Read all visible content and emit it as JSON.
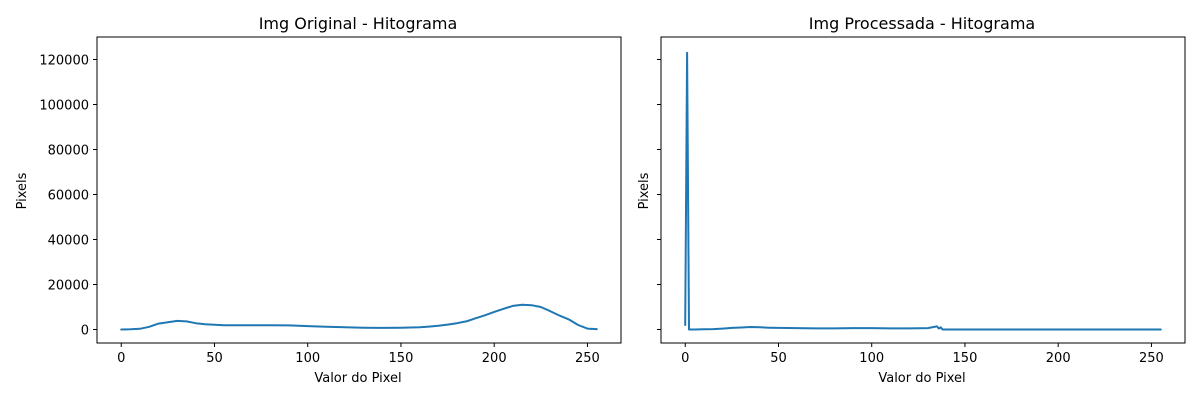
{
  "chart_data": [
    {
      "type": "line",
      "title": "Img Original - Hitograma",
      "xlabel": "Valor do Pixel",
      "ylabel": "Pixels",
      "xlim": [
        -13,
        268
      ],
      "ylim": [
        -6000,
        130000
      ],
      "xticks": [
        0,
        50,
        100,
        150,
        200,
        250
      ],
      "yticks": [
        0,
        20000,
        40000,
        60000,
        80000,
        100000,
        120000
      ],
      "ytick_labels_visible": true,
      "grid": false,
      "color": "#1f77b4",
      "series": [
        {
          "x": [
            0,
            5,
            10,
            15,
            20,
            25,
            30,
            35,
            40,
            45,
            50,
            55,
            60,
            70,
            80,
            90,
            100,
            110,
            120,
            130,
            140,
            150,
            160,
            165,
            170,
            175,
            180,
            185,
            190,
            195,
            200,
            205,
            210,
            215,
            220,
            225,
            230,
            235,
            240,
            245,
            250,
            255
          ],
          "y": [
            0,
            100,
            300,
            1200,
            2600,
            3200,
            3800,
            3600,
            2800,
            2300,
            2100,
            1900,
            1900,
            1900,
            1900,
            1800,
            1500,
            1200,
            1000,
            800,
            700,
            800,
            1000,
            1300,
            1700,
            2200,
            2800,
            3600,
            5000,
            6300,
            7800,
            9200,
            10500,
            11000,
            10800,
            10000,
            8200,
            6200,
            4500,
            2000,
            400,
            200
          ]
        }
      ]
    },
    {
      "type": "line",
      "title": "Img Processada - Hitograma",
      "xlabel": "Valor do Pixel",
      "ylabel": "Pixels",
      "xlim": [
        -13,
        268
      ],
      "ylim": [
        -6000,
        130000
      ],
      "xticks": [
        0,
        50,
        100,
        150,
        200,
        250
      ],
      "yticks": [
        0,
        20000,
        40000,
        60000,
        80000,
        100000,
        120000
      ],
      "ytick_labels_visible": false,
      "grid": false,
      "color": "#1f77b4",
      "series": [
        {
          "x": [
            0,
            1,
            2,
            5,
            10,
            15,
            20,
            25,
            30,
            35,
            40,
            45,
            50,
            60,
            70,
            80,
            90,
            100,
            110,
            120,
            130,
            135,
            136,
            137,
            138,
            140,
            150,
            200,
            255
          ],
          "y": [
            2000,
            123000,
            0,
            0,
            100,
            200,
            400,
            700,
            900,
            1100,
            1000,
            800,
            700,
            600,
            500,
            500,
            600,
            600,
            500,
            500,
            600,
            1400,
            400,
            1000,
            0,
            0,
            0,
            0,
            0
          ]
        }
      ]
    }
  ]
}
